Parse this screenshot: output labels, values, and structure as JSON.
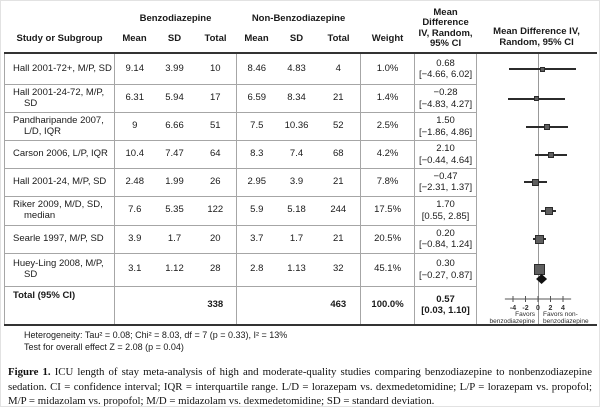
{
  "table": {
    "group_headers": {
      "benzo": "Benzodiazepine",
      "nonbenzo": "Non-Benzodiazepine"
    },
    "col_headers": {
      "study": "Study or Subgroup",
      "mean": "Mean",
      "sd": "SD",
      "total": "Total",
      "weight": "Weight",
      "md": "Mean\nDifference\nIV, Random,\n95% CI",
      "plot": "Mean Difference IV,\nRandom, 95% CI"
    }
  },
  "rows": [
    {
      "study": "Hall 2001-72+, M/P, SD",
      "b_mean": "9.14",
      "b_sd": "3.99",
      "b_total": "10",
      "n_mean": "8.46",
      "n_sd": "4.83",
      "n_total": "4",
      "weight": "1.0%",
      "md": "0.68",
      "ci": "[−4.66, 6.02]"
    },
    {
      "study": "Hall 2001-24-72, M/P, SD",
      "b_mean": "6.31",
      "b_sd": "5.94",
      "b_total": "17",
      "n_mean": "6.59",
      "n_sd": "8.34",
      "n_total": "21",
      "weight": "1.4%",
      "md": "−0.28",
      "ci": "[−4.83, 4.27]"
    },
    {
      "study": "Pandharipande 2007, L/D, IQR",
      "b_mean": "9",
      "b_sd": "6.66",
      "b_total": "51",
      "n_mean": "7.5",
      "n_sd": "10.36",
      "n_total": "52",
      "weight": "2.5%",
      "md": "1.50",
      "ci": "[−1.86, 4.86]"
    },
    {
      "study": "Carson 2006, L/P, IQR",
      "b_mean": "10.4",
      "b_sd": "7.47",
      "b_total": "64",
      "n_mean": "8.3",
      "n_sd": "7.4",
      "n_total": "68",
      "weight": "4.2%",
      "md": "2.10",
      "ci": "[−0.44, 4.64]"
    },
    {
      "study": "Hall 2001-24, M/P, SD",
      "b_mean": "2.48",
      "b_sd": "1.99",
      "b_total": "26",
      "n_mean": "2.95",
      "n_sd": "3.9",
      "n_total": "21",
      "weight": "7.8%",
      "md": "−0.47",
      "ci": "[−2.31, 1.37]"
    },
    {
      "study": "Riker 2009, M/D, SD, median",
      "b_mean": "7.6",
      "b_sd": "5.35",
      "b_total": "122",
      "n_mean": "5.9",
      "n_sd": "5.18",
      "n_total": "244",
      "weight": "17.5%",
      "md": "1.70",
      "ci": "[0.55, 2.85]"
    },
    {
      "study": "Searle 1997, M/P, SD",
      "b_mean": "3.9",
      "b_sd": "1.7",
      "b_total": "20",
      "n_mean": "3.7",
      "n_sd": "1.7",
      "n_total": "21",
      "weight": "20.5%",
      "md": "0.20",
      "ci": "[−0.84, 1.24]"
    },
    {
      "study": "Huey-Ling 2008, M/P, SD",
      "b_mean": "3.1",
      "b_sd": "1.12",
      "b_total": "28",
      "n_mean": "2.8",
      "n_sd": "1.13",
      "n_total": "32",
      "weight": "45.1%",
      "md": "0.30",
      "ci": "[−0.27, 0.87]"
    }
  ],
  "total_row": {
    "label": "Total (95% CI)",
    "b_total": "338",
    "n_total": "463",
    "weight": "100.0%",
    "md": "0.57",
    "ci": "[0.03, 1.10]"
  },
  "footnotes": {
    "line1": "Heterogeneity: Tau² = 0.08; Chi² = 8.03, df = 7 (p = 0.33), I² = 13%",
    "line2": "Test for overall effect Z = 2.08 (p = 0.04)"
  },
  "caption": {
    "label": "Figure 1.",
    "text": " ICU length of stay meta-analysis of high and moderate-quality studies comparing benzodiazepine to nonbenzodiazepine sedation. CI = confidence interval; IQR = interquartile range. L/D = lorazepam vs. dexmedetomidine; L/P = lorazepam vs. propofol; M/P = midazolam vs. propofol; M/D = midazolam vs. dexmedetomidine; SD = standard deviation."
  },
  "chart_data": {
    "type": "scatter",
    "subtype": "forest-plot",
    "title": "Mean Difference IV, Random, 95% CI",
    "xlim": [
      -5.3,
      5.3
    ],
    "axis_ticks": [
      -4,
      -2,
      0,
      2,
      4
    ],
    "favors_left": "Favors benzodiazepine",
    "favors_right": "Favors non-benzodiazepine",
    "studies": [
      {
        "label": "Hall 2001-72+, M/P, SD",
        "mean_difference": 0.68,
        "ci_lower": -4.66,
        "ci_upper": 6.02,
        "weight_pct": 1.0
      },
      {
        "label": "Hall 2001-24-72, M/P, SD",
        "mean_difference": -0.28,
        "ci_lower": -4.83,
        "ci_upper": 4.27,
        "weight_pct": 1.4
      },
      {
        "label": "Pandharipande 2007, L/D, IQR",
        "mean_difference": 1.5,
        "ci_lower": -1.86,
        "ci_upper": 4.86,
        "weight_pct": 2.5
      },
      {
        "label": "Carson 2006, L/P, IQR",
        "mean_difference": 2.1,
        "ci_lower": -0.44,
        "ci_upper": 4.64,
        "weight_pct": 4.2
      },
      {
        "label": "Hall 2001-24, M/P, SD",
        "mean_difference": -0.47,
        "ci_lower": -2.31,
        "ci_upper": 1.37,
        "weight_pct": 7.8
      },
      {
        "label": "Riker 2009, M/D, SD, median",
        "mean_difference": 1.7,
        "ci_lower": 0.55,
        "ci_upper": 2.85,
        "weight_pct": 17.5
      },
      {
        "label": "Searle 1997, M/P, SD",
        "mean_difference": 0.2,
        "ci_lower": -0.84,
        "ci_upper": 1.24,
        "weight_pct": 20.5
      },
      {
        "label": "Huey-Ling 2008, M/P, SD",
        "mean_difference": 0.3,
        "ci_lower": -0.27,
        "ci_upper": 0.87,
        "weight_pct": 45.1
      }
    ],
    "total": {
      "label": "Total (95% CI)",
      "mean_difference": 0.57,
      "ci_lower": 0.03,
      "ci_upper": 1.1,
      "weight_pct": 100.0
    }
  },
  "colors": {
    "text": "#1a1a1a",
    "grid_border": "#a6a6a6",
    "heavy_border": "#333333",
    "ci_line": "#2b2b2b",
    "marker": "#5f5f5f",
    "diamond": "#111111",
    "zero_line": "#999999"
  }
}
